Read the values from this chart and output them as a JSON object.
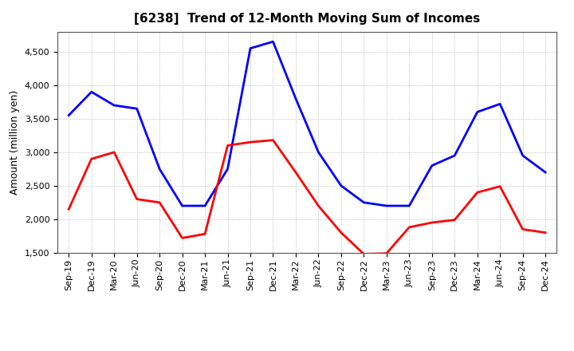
{
  "title": "[6238]  Trend of 12-Month Moving Sum of Incomes",
  "ylabel": "Amount (million yen)",
  "x_labels": [
    "Sep-19",
    "Dec-19",
    "Mar-20",
    "Jun-20",
    "Sep-20",
    "Dec-20",
    "Mar-21",
    "Jun-21",
    "Sep-21",
    "Dec-21",
    "Mar-22",
    "Jun-22",
    "Sep-22",
    "Dec-22",
    "Mar-23",
    "Jun-23",
    "Sep-23",
    "Dec-23",
    "Mar-24",
    "Jun-24",
    "Sep-24",
    "Dec-24"
  ],
  "ordinary_income": [
    3550,
    3900,
    3700,
    3650,
    2750,
    2200,
    2200,
    2750,
    4550,
    4650,
    3800,
    3000,
    2500,
    2250,
    2200,
    2200,
    2800,
    2950,
    3600,
    3720,
    2950,
    2700
  ],
  "net_income": [
    2150,
    2900,
    3000,
    2300,
    2250,
    1720,
    1780,
    3100,
    3150,
    3180,
    2700,
    2200,
    1800,
    1480,
    1490,
    1880,
    1950,
    1990,
    2400,
    2490,
    1850,
    1800
  ],
  "ordinary_color": "#0000ff",
  "net_color": "#ff0000",
  "ylim_min": 1500,
  "ylim_max": 4800,
  "yticks": [
    1500,
    2000,
    2500,
    3000,
    3500,
    4000,
    4500
  ],
  "background_color": "#ffffff",
  "grid_color": "#aaaaaa",
  "title_fontsize": 11,
  "axis_label_fontsize": 9,
  "tick_fontsize": 8,
  "legend_fontsize": 9,
  "linewidth": 2.0
}
